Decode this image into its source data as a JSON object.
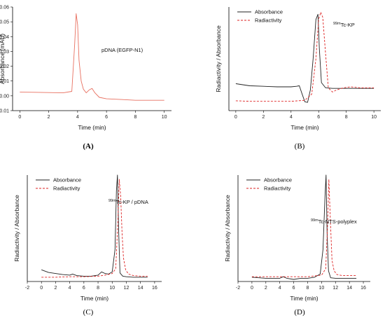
{
  "chart_data": [
    {
      "type": "line",
      "panel_label": "(A)",
      "xlabel": "Time (min)",
      "ylabel": "Absorbance (mAU)",
      "xlim": [
        -0.5,
        10.5
      ],
      "ylim": [
        -0.01,
        0.06
      ],
      "xticks": [
        0,
        2,
        4,
        6,
        8,
        10
      ],
      "yticks": [
        -0.01,
        0.0,
        0.01,
        0.02,
        0.03,
        0.04,
        0.05,
        0.06
      ],
      "ytick_labels": [
        "-0.01",
        "0.00",
        "0.01",
        "0.02",
        "0.03",
        "0.04",
        "0.05",
        "0.06"
      ],
      "annotation": "pDNA (EGFP-N1)",
      "series": [
        {
          "color": "#e87060",
          "style": "solid",
          "x": [
            0,
            1,
            2,
            3,
            3.6,
            3.8,
            3.9,
            4.0,
            4.1,
            4.25,
            4.4,
            4.6,
            4.8,
            5.0,
            5.2,
            5.5,
            6,
            7,
            8,
            9,
            10
          ],
          "y": [
            0.0025,
            0.0024,
            0.0022,
            0.002,
            0.003,
            0.035,
            0.0555,
            0.048,
            0.024,
            0.01,
            0.0045,
            0.002,
            0.004,
            0.005,
            0.002,
            -0.001,
            -0.002,
            -0.0025,
            -0.003,
            -0.003,
            -0.003
          ]
        }
      ]
    },
    {
      "type": "line",
      "panel_label": "(B)",
      "xlabel": "Time (min)",
      "ylabel": "Radiactivity / Absorbance",
      "xlim": [
        -0.5,
        10.5
      ],
      "ylim": [
        0,
        1
      ],
      "xticks": [
        0,
        2,
        4,
        6,
        8,
        10
      ],
      "yticks": [],
      "legend_position": "top-left",
      "annotation_sup": "99m",
      "annotation_main": "Tc-KP",
      "series": [
        {
          "name": "Absorbance",
          "color": "#222222",
          "style": "solid",
          "x": [
            0,
            1,
            2,
            3,
            4,
            4.4,
            4.6,
            4.8,
            5.0,
            5.2,
            5.4,
            5.6,
            5.8,
            5.95,
            6.05,
            6.2,
            6.5,
            7,
            8,
            9,
            10
          ],
          "y": [
            0.26,
            0.24,
            0.235,
            0.23,
            0.23,
            0.235,
            0.24,
            0.16,
            0.085,
            0.08,
            0.2,
            0.5,
            0.88,
            0.93,
            0.6,
            0.27,
            0.22,
            0.215,
            0.215,
            0.215,
            0.215
          ]
        },
        {
          "name": "Radiactivity",
          "color": "#dd2222",
          "style": "dashed",
          "x": [
            0,
            1,
            2,
            3,
            4,
            5,
            5.5,
            5.8,
            6.0,
            6.15,
            6.3,
            6.5,
            6.7,
            7.0,
            7.3,
            7.8,
            8.3,
            9,
            10
          ],
          "y": [
            0.095,
            0.09,
            0.09,
            0.09,
            0.09,
            0.1,
            0.16,
            0.5,
            0.88,
            0.95,
            0.9,
            0.55,
            0.22,
            0.18,
            0.2,
            0.22,
            0.23,
            0.22,
            0.22
          ]
        }
      ]
    },
    {
      "type": "line",
      "panel_label": "(C)",
      "xlabel": "Time (min)",
      "ylabel": "Radiactivity / Absorbance",
      "xlim": [
        -2,
        17
      ],
      "ylim": [
        0,
        1
      ],
      "xticks": [
        -2,
        0,
        2,
        4,
        6,
        8,
        10,
        12,
        14,
        16
      ],
      "yticks": [],
      "legend_position": "top-left",
      "annotation_sup": "99m",
      "annotation_main": "Tc-KP / pDNA",
      "series": [
        {
          "name": "Absorbance",
          "color": "#222222",
          "style": "solid",
          "x": [
            0,
            1,
            2,
            3,
            4,
            4.4,
            5,
            6,
            7,
            8,
            8.5,
            9,
            9.5,
            10,
            10.4,
            10.6,
            10.75,
            10.9,
            11.1,
            11.5,
            12,
            13,
            14,
            15
          ],
          "y": [
            0.11,
            0.085,
            0.075,
            0.065,
            0.06,
            0.07,
            0.055,
            0.05,
            0.05,
            0.06,
            0.09,
            0.075,
            0.07,
            0.09,
            0.3,
            0.85,
            1.0,
            0.5,
            0.08,
            0.05,
            0.045,
            0.04,
            0.04,
            0.04
          ]
        },
        {
          "name": "Radiactivity",
          "color": "#dd2222",
          "style": "dashed",
          "x": [
            0,
            2,
            4,
            6,
            8,
            9,
            10,
            10.5,
            10.8,
            11.0,
            11.2,
            11.4,
            11.6,
            11.9,
            12.3,
            13,
            14,
            15
          ],
          "y": [
            0.04,
            0.04,
            0.045,
            0.045,
            0.05,
            0.06,
            0.075,
            0.12,
            0.55,
            0.96,
            0.8,
            0.45,
            0.22,
            0.11,
            0.07,
            0.055,
            0.05,
            0.05
          ]
        }
      ]
    },
    {
      "type": "line",
      "panel_label": "(D)",
      "xlabel": "Time (min)",
      "ylabel": "Radiactivity / Absorbance",
      "xlim": [
        -2,
        17
      ],
      "ylim": [
        0,
        1
      ],
      "xticks": [
        -2,
        0,
        2,
        4,
        6,
        8,
        10,
        12,
        14,
        16
      ],
      "yticks": [],
      "legend_position": "top-left",
      "annotation_sup": "99m",
      "annotation_main": "Tc-NTS-polyplex",
      "series": [
        {
          "name": "Absorbance",
          "color": "#222222",
          "style": "solid",
          "x": [
            0,
            1,
            2,
            3,
            4,
            4.5,
            5,
            6,
            7,
            8,
            9,
            9.8,
            10.2,
            10.5,
            10.65,
            10.8,
            11.0,
            11.3,
            12,
            13,
            15
          ],
          "y": [
            0.04,
            0.035,
            0.03,
            0.03,
            0.03,
            0.045,
            0.03,
            0.02,
            0.03,
            0.03,
            0.04,
            0.07,
            0.3,
            0.8,
            1.0,
            0.45,
            0.1,
            0.035,
            0.03,
            0.03,
            0.03
          ]
        },
        {
          "name": "Radiactivity",
          "color": "#dd2222",
          "style": "dashed",
          "x": [
            0,
            2,
            4,
            6,
            8,
            10,
            10.6,
            10.85,
            11.05,
            11.25,
            11.5,
            11.8,
            12.2,
            13,
            15
          ],
          "y": [
            0.045,
            0.045,
            0.045,
            0.045,
            0.045,
            0.06,
            0.12,
            0.5,
            0.96,
            0.6,
            0.2,
            0.1,
            0.065,
            0.055,
            0.055
          ]
        }
      ]
    }
  ]
}
